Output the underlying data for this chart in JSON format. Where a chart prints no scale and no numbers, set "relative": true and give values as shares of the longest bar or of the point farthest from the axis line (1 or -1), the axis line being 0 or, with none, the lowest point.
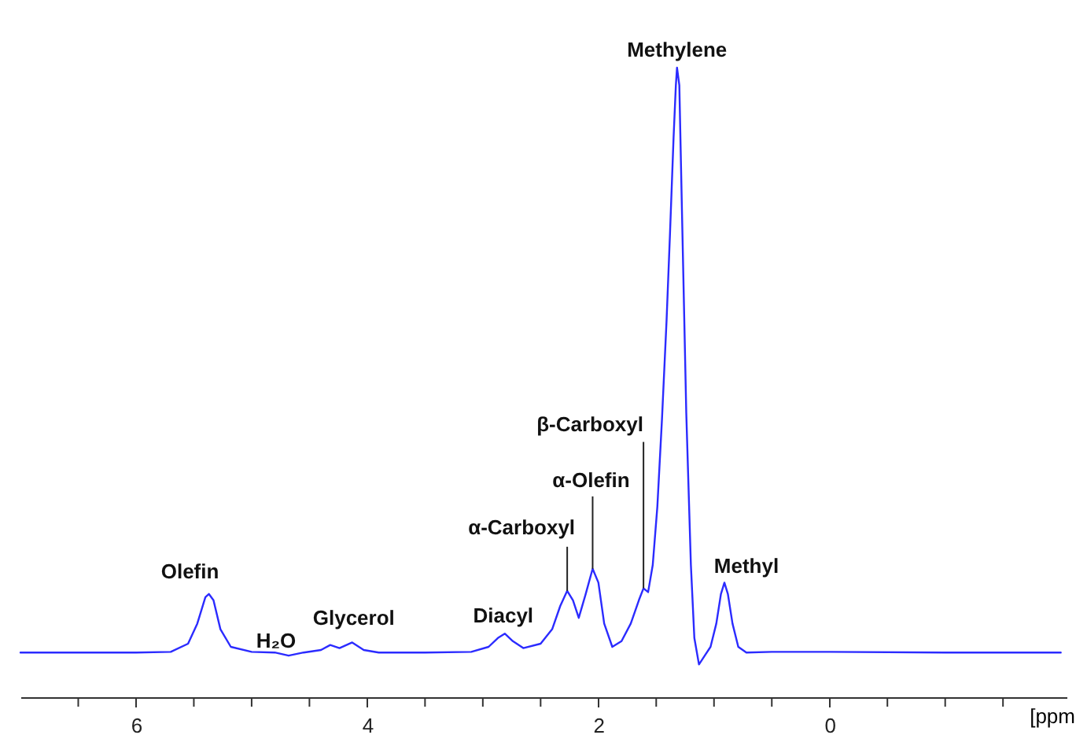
{
  "chart_data": {
    "type": "line",
    "relative": true,
    "xlabel": "[ppm",
    "xlim": [
      7.0,
      -2.05
    ],
    "xticks": [
      {
        "value": 6.5,
        "label": null
      },
      6,
      {
        "value": 5.5,
        "label": null
      },
      {
        "value": 5,
        "label": null
      },
      {
        "value": 4.5,
        "label": null
      },
      4,
      {
        "value": 3.5,
        "label": null
      },
      {
        "value": 3,
        "label": null
      },
      {
        "value": 2.5,
        "label": null
      },
      2,
      {
        "value": 1.5,
        "label": null
      },
      {
        "value": 1,
        "label": null
      },
      {
        "value": 0.5,
        "label": null
      },
      0,
      {
        "value": -0.5,
        "label": null
      },
      {
        "value": -1,
        "label": null
      },
      {
        "value": -1.5,
        "label": null
      }
    ],
    "grid": false,
    "marker": "none",
    "line_style": "solid",
    "x": [
      7.0,
      6.5,
      6.0,
      5.7,
      5.55,
      5.47,
      5.4,
      5.37,
      5.33,
      5.27,
      5.18,
      5.0,
      4.8,
      4.68,
      4.55,
      4.4,
      4.32,
      4.24,
      4.13,
      4.03,
      3.9,
      3.5,
      3.1,
      2.95,
      2.87,
      2.81,
      2.74,
      2.65,
      2.5,
      2.4,
      2.33,
      2.27,
      2.22,
      2.17,
      2.11,
      2.05,
      2.0,
      1.95,
      1.88,
      1.8,
      1.72,
      1.65,
      1.61,
      1.57,
      1.53,
      1.49,
      1.45,
      1.41,
      1.38,
      1.35,
      1.33,
      1.32,
      1.3,
      1.28,
      1.24,
      1.2,
      1.17,
      1.13,
      1.08,
      1.03,
      0.98,
      0.94,
      0.91,
      0.88,
      0.84,
      0.79,
      0.72,
      0.5,
      0.0,
      -1.0,
      -2.0
    ],
    "series": [
      {
        "color": "#2b2bff",
        "values": [
          0.071,
          0.071,
          0.071,
          0.072,
          0.085,
          0.117,
          0.159,
          0.164,
          0.154,
          0.108,
          0.08,
          0.072,
          0.071,
          0.066,
          0.071,
          0.075,
          0.083,
          0.078,
          0.087,
          0.075,
          0.071,
          0.071,
          0.072,
          0.08,
          0.094,
          0.101,
          0.089,
          0.078,
          0.085,
          0.108,
          0.145,
          0.169,
          0.154,
          0.126,
          0.164,
          0.204,
          0.182,
          0.117,
          0.08,
          0.089,
          0.117,
          0.154,
          0.173,
          0.167,
          0.21,
          0.303,
          0.442,
          0.6,
          0.74,
          0.888,
          0.972,
          1.0,
          0.972,
          0.796,
          0.452,
          0.21,
          0.094,
          0.052,
          0.066,
          0.08,
          0.117,
          0.164,
          0.182,
          0.164,
          0.117,
          0.08,
          0.071,
          0.072,
          0.072,
          0.071,
          0.071
        ]
      }
    ],
    "annotations": [
      {
        "text": "Olefin",
        "x": 5.37,
        "y": 0.164
      },
      {
        "text": "H₂O",
        "x": 4.68,
        "y": 0.066
      },
      {
        "text": "Glycerol",
        "x": 4.13,
        "y": 0.087
      },
      {
        "text": "Diacyl",
        "x": 2.81,
        "y": 0.101
      },
      {
        "text": "α-Carboxyl",
        "x": 2.27,
        "y": 0.169
      },
      {
        "text": "α-Olefin",
        "x": 2.05,
        "y": 0.204
      },
      {
        "text": "β-Carboxyl",
        "x": 1.61,
        "y": 0.173
      },
      {
        "text": "Methylene",
        "x": 1.32,
        "y": 1.0
      },
      {
        "text": "Methyl",
        "x": 0.91,
        "y": 0.182
      }
    ]
  }
}
